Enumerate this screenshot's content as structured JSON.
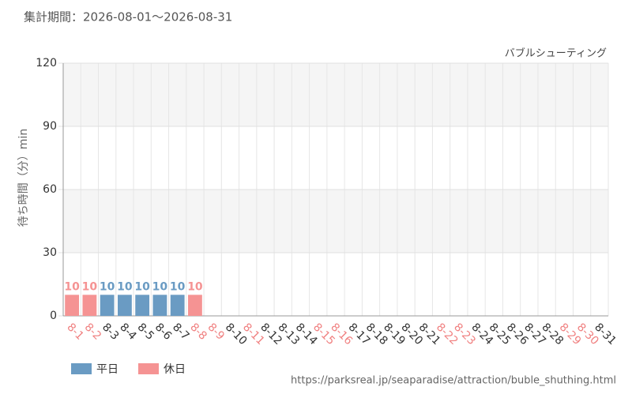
{
  "chart_data": {
    "type": "bar",
    "title": "集計期間：2026-08-01～2026-08-31",
    "subtitle": "バブルシューティング",
    "y_label": "待ち時間（分）min",
    "source": "https://parksreal.jp/seaparadise/attraction/buble_shuthing.html",
    "categories": [
      "8-1",
      "8-2",
      "8-3",
      "8-4",
      "8-5",
      "8-6",
      "8-7",
      "8-8",
      "8-9",
      "8-10",
      "8-11",
      "8-12",
      "8-13",
      "8-14",
      "8-15",
      "8-16",
      "8-17",
      "8-18",
      "8-19",
      "8-20",
      "8-21",
      "8-22",
      "8-23",
      "8-24",
      "8-25",
      "8-26",
      "8-27",
      "8-28",
      "8-29",
      "8-30",
      "8-31"
    ],
    "category_colors": [
      "#f08080",
      "#f08080",
      "#333333",
      "#333333",
      "#333333",
      "#333333",
      "#333333",
      "#f08080",
      "#f08080",
      "#333333",
      "#f08080",
      "#333333",
      "#333333",
      "#333333",
      "#f08080",
      "#f08080",
      "#333333",
      "#333333",
      "#333333",
      "#333333",
      "#333333",
      "#f08080",
      "#f08080",
      "#333333",
      "#333333",
      "#333333",
      "#333333",
      "#333333",
      "#f08080",
      "#f08080",
      "#333333"
    ],
    "series": [
      {
        "name": "平日",
        "color": "#6a9bc3",
        "values": [
          null,
          null,
          10,
          10,
          10,
          10,
          10,
          null,
          null,
          null,
          null,
          null,
          null,
          null,
          null,
          null,
          null,
          null,
          null,
          null,
          null,
          null,
          null,
          null,
          null,
          null,
          null,
          null,
          null,
          null,
          null
        ]
      },
      {
        "name": "休日",
        "color": "#f59393",
        "values": [
          10,
          10,
          null,
          null,
          null,
          null,
          null,
          10,
          null,
          null,
          null,
          null,
          null,
          null,
          null,
          null,
          null,
          null,
          null,
          null,
          null,
          null,
          null,
          null,
          null,
          null,
          null,
          null,
          null,
          null,
          null
        ]
      }
    ],
    "ylim": [
      0,
      120
    ],
    "yticks": [
      0,
      30,
      60,
      90,
      120
    ],
    "grid": true
  }
}
